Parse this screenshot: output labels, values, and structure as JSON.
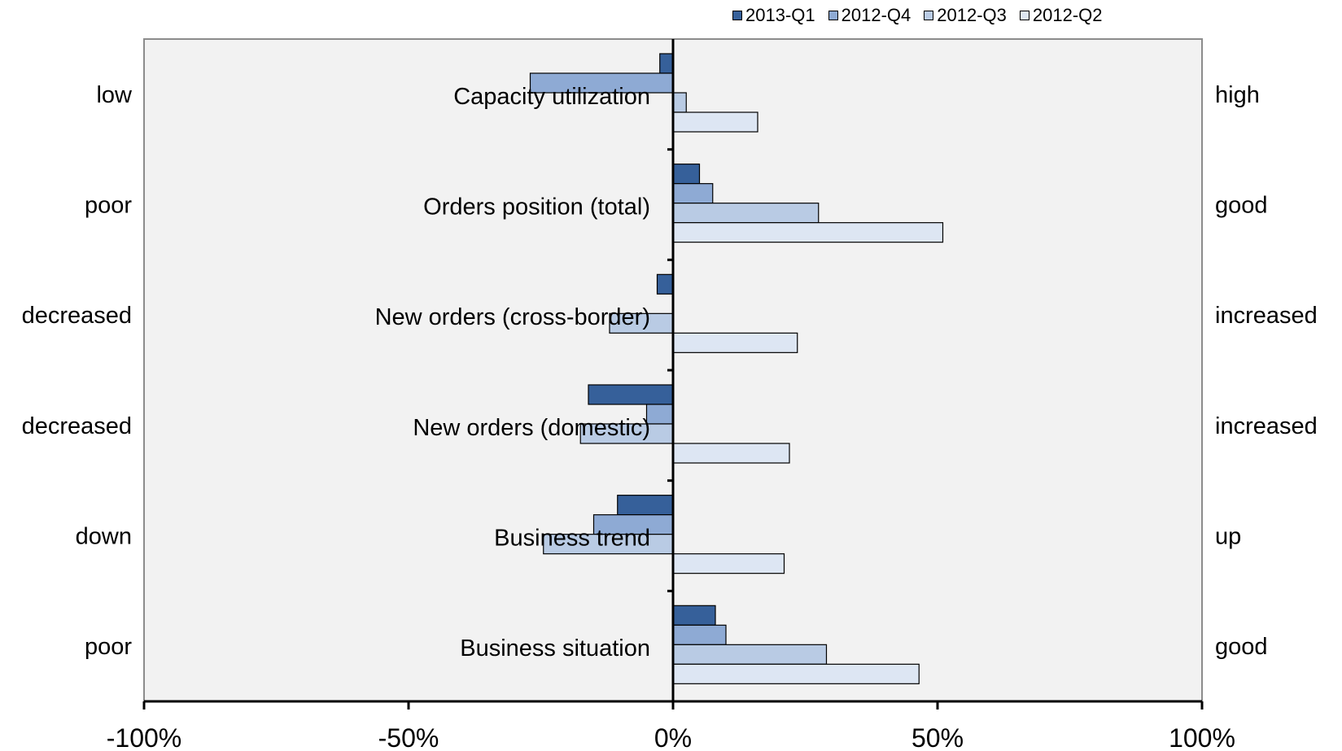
{
  "chart_data": {
    "type": "bar",
    "orientation": "horizontal",
    "categories": [
      "Capacity utilization",
      "Orders position (total)",
      "New orders (cross-border)",
      "New orders (domestic)",
      "Business trend",
      "Business situation"
    ],
    "left_labels": [
      "low",
      "poor",
      "decreased",
      "decreased",
      "down",
      "poor"
    ],
    "right_labels": [
      "high",
      "good",
      "increased",
      "increased",
      "up",
      "good"
    ],
    "series": [
      {
        "name": "2013-Q1",
        "color": "#36609a",
        "values": [
          -2.5,
          5.0,
          -3.0,
          -16.0,
          -10.5,
          8.0
        ]
      },
      {
        "name": "2012-Q4",
        "color": "#8eaad4",
        "values": [
          -27.0,
          7.5,
          0,
          -5.0,
          -15.0,
          10.0
        ]
      },
      {
        "name": "2012-Q3",
        "color": "#b9cbe4",
        "values": [
          2.5,
          27.5,
          -12.0,
          -17.5,
          -24.5,
          29.0
        ]
      },
      {
        "name": "2012-Q2",
        "color": "#dde6f3",
        "values": [
          16.0,
          51.0,
          23.5,
          22.0,
          21.0,
          46.5
        ]
      }
    ],
    "xlim": [
      -100,
      100
    ],
    "xticks": [
      -100,
      -50,
      0,
      50,
      100
    ],
    "xtick_labels": [
      "-100%",
      "-50%",
      "0%",
      "50%",
      "100%"
    ],
    "legend_position": "top",
    "plot_background": "#f2f2f2",
    "grid": false
  }
}
